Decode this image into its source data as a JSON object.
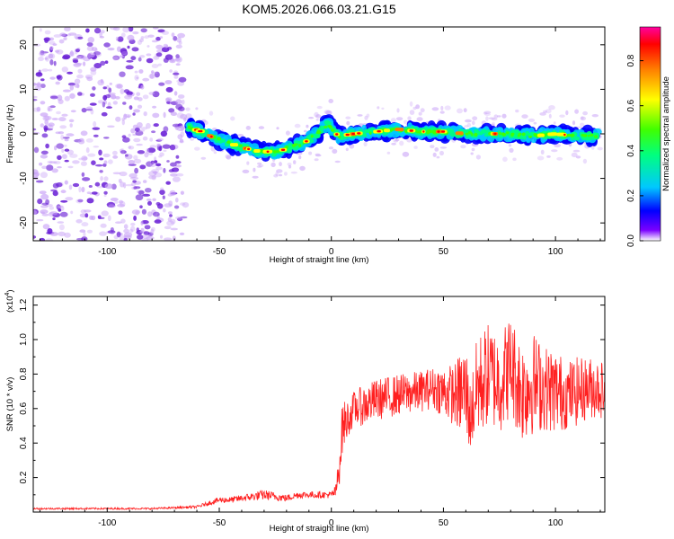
{
  "figure_title": "KOM5.2026.066.03.21.G15",
  "colors": {
    "snr_line": "#ff2020",
    "scatter_purple_dark": "#6a1fd6",
    "scatter_purple_light": "#c9a3f7"
  },
  "colormap": [
    "#ffffff",
    "#7a00ff",
    "#0000ff",
    "#00c8ff",
    "#00ff80",
    "#40ff00",
    "#ffff00",
    "#ff8000",
    "#ff0000",
    "#ff00a0"
  ],
  "chart_data": [
    {
      "type": "heatmap",
      "title": "",
      "xlabel": "Height of straight line (km)",
      "ylabel": "Frequency (Hz)",
      "xlim": [
        -133,
        122
      ],
      "ylim": [
        -24,
        24
      ],
      "x_ticks": [
        -100,
        -50,
        0,
        50,
        100
      ],
      "y_ticks": [
        -20,
        -10,
        0,
        10,
        20
      ],
      "grid": false,
      "noise_region_x": [
        -133,
        -65
      ],
      "signal_region_x": [
        -65,
        120
      ],
      "ridge": {
        "x": [
          -64,
          -58,
          -52,
          -46,
          -40,
          -34,
          -28,
          -24,
          -18,
          -12,
          -8,
          -5,
          -2,
          0,
          3,
          10,
          20,
          30,
          40,
          50,
          60,
          70,
          80,
          90,
          100,
          110,
          118
        ],
        "y": [
          1.5,
          0.5,
          -1.0,
          -2.0,
          -3.0,
          -3.8,
          -4.0,
          -4.0,
          -3.0,
          -2.0,
          -0.5,
          0.5,
          2.0,
          1.5,
          -0.5,
          0.0,
          0.5,
          1.0,
          0.5,
          0.5,
          0.0,
          0.0,
          0.0,
          -0.5,
          0.0,
          -0.5,
          -0.5
        ]
      },
      "colorbar": {
        "label": "Normalized spectral amplitude",
        "range": [
          0.0,
          0.95
        ],
        "ticks": [
          0.0,
          0.2,
          0.4,
          0.6,
          0.8
        ],
        "tick_labels": [
          "0.0",
          "0.2",
          "0.4",
          "0.6",
          "0.8"
        ]
      }
    },
    {
      "type": "line",
      "title": "",
      "xlabel": "Height of straight line (km)",
      "ylabel": "SNR (10 * v/v)",
      "y_multiplier_label": "(x10",
      "y_multiplier_exp": "4",
      "y_multiplier_close": ")",
      "xlim": [
        -133,
        122
      ],
      "ylim": [
        0,
        1.25
      ],
      "x_ticks": [
        -100,
        -50,
        0,
        50,
        100
      ],
      "y_ticks": [
        0.2,
        0.4,
        0.6,
        0.8,
        1.0,
        1.2
      ],
      "grid": false,
      "series": [
        {
          "x": [
            -133,
            -120,
            -100,
            -80,
            -70,
            -60,
            -55,
            -50,
            -45,
            -40,
            -35,
            -30,
            -25,
            -20,
            -15,
            -10,
            -5,
            0,
            2,
            3,
            4,
            5,
            8,
            10,
            15,
            20,
            30,
            40,
            45,
            50,
            55,
            60,
            62,
            65,
            70,
            75,
            80,
            85,
            90,
            95,
            100,
            105,
            110,
            115,
            120,
            122
          ],
          "y": [
            0.02,
            0.02,
            0.02,
            0.02,
            0.025,
            0.03,
            0.05,
            0.07,
            0.07,
            0.08,
            0.09,
            0.1,
            0.09,
            0.08,
            0.1,
            0.1,
            0.1,
            0.1,
            0.12,
            0.2,
            0.35,
            0.5,
            0.55,
            0.6,
            0.62,
            0.65,
            0.68,
            0.7,
            0.72,
            0.7,
            0.68,
            0.7,
            0.55,
            0.72,
            0.8,
            0.75,
            0.85,
            0.7,
            0.75,
            0.72,
            0.7,
            0.68,
            0.7,
            0.72,
            0.72,
            0.7
          ],
          "amplitude": [
            0.005,
            0.005,
            0.005,
            0.005,
            0.006,
            0.008,
            0.012,
            0.018,
            0.018,
            0.02,
            0.025,
            0.03,
            0.025,
            0.02,
            0.02,
            0.02,
            0.02,
            0.02,
            0.04,
            0.1,
            0.15,
            0.15,
            0.1,
            0.1,
            0.12,
            0.12,
            0.12,
            0.12,
            0.12,
            0.15,
            0.18,
            0.3,
            0.2,
            0.3,
            0.3,
            0.3,
            0.3,
            0.3,
            0.3,
            0.25,
            0.25,
            0.2,
            0.2,
            0.18,
            0.18,
            0.15
          ]
        }
      ]
    }
  ]
}
